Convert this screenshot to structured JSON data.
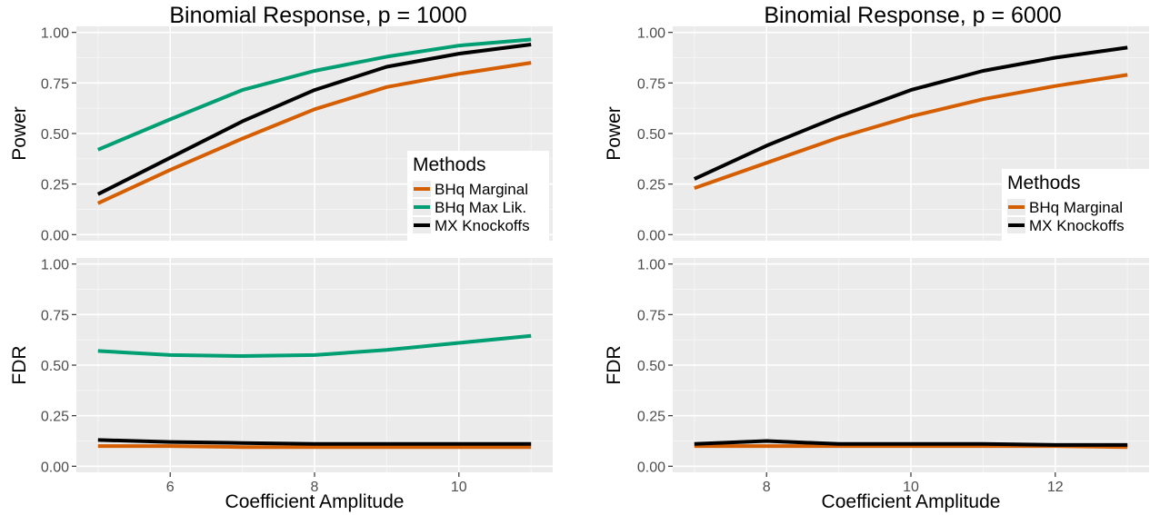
{
  "figure": {
    "colors": {
      "panel_bg": "#ebebeb",
      "grid_major": "#ffffff",
      "grid_minor": "#f5f5f5",
      "tick_text": "#4d4d4d"
    }
  },
  "chart_data": [
    {
      "type": "line",
      "title": "Binomial Response, p = 1000",
      "xlabel": "Coefficient Amplitude",
      "x": [
        5,
        6,
        7,
        8,
        9,
        10,
        11
      ],
      "xlim": [
        4.7,
        11.3
      ],
      "xticks": [
        6,
        8,
        10
      ],
      "legend": {
        "title": "Methods",
        "position": "bottom-right of top panel"
      },
      "panels": [
        {
          "ylabel": "Power",
          "ylim": [
            -0.03,
            1.03
          ],
          "yticks": [
            "0.00",
            "0.25",
            "0.50",
            "0.75",
            "1.00"
          ],
          "series": [
            {
              "name": "BHq Marginal",
              "color": "#d55e00",
              "values": [
                0.155,
                0.32,
                0.475,
                0.62,
                0.73,
                0.795,
                0.85
              ]
            },
            {
              "name": "BHq Max Lik.",
              "color": "#009e73",
              "values": [
                0.42,
                0.57,
                0.715,
                0.81,
                0.88,
                0.935,
                0.965
              ]
            },
            {
              "name": "MX Knockoffs",
              "color": "#000000",
              "values": [
                0.2,
                0.38,
                0.56,
                0.715,
                0.83,
                0.895,
                0.94
              ]
            }
          ]
        },
        {
          "ylabel": "FDR",
          "ylim": [
            -0.03,
            1.03
          ],
          "yticks": [
            "0.00",
            "0.25",
            "0.50",
            "0.75",
            "1.00"
          ],
          "series": [
            {
              "name": "BHq Marginal",
              "color": "#d55e00",
              "values": [
                0.1,
                0.1,
                0.095,
                0.095,
                0.095,
                0.095,
                0.095
              ]
            },
            {
              "name": "BHq Max Lik.",
              "color": "#009e73",
              "values": [
                0.57,
                0.55,
                0.545,
                0.55,
                0.575,
                0.61,
                0.645
              ]
            },
            {
              "name": "MX Knockoffs",
              "color": "#000000",
              "values": [
                0.13,
                0.12,
                0.115,
                0.11,
                0.11,
                0.11,
                0.11
              ]
            }
          ]
        }
      ]
    },
    {
      "type": "line",
      "title": "Binomial Response, p = 6000",
      "xlabel": "Coefficient Amplitude",
      "x": [
        7,
        8,
        9,
        10,
        11,
        12,
        13
      ],
      "xlim": [
        6.7,
        13.3
      ],
      "xticks": [
        8,
        10,
        12
      ],
      "legend": {
        "title": "Methods",
        "position": "bottom-right of top panel"
      },
      "panels": [
        {
          "ylabel": "Power",
          "ylim": [
            -0.03,
            1.03
          ],
          "yticks": [
            "0.00",
            "0.25",
            "0.50",
            "0.75",
            "1.00"
          ],
          "series": [
            {
              "name": "BHq Marginal",
              "color": "#d55e00",
              "values": [
                0.23,
                0.355,
                0.48,
                0.585,
                0.67,
                0.735,
                0.79
              ]
            },
            {
              "name": "MX Knockoffs",
              "color": "#000000",
              "values": [
                0.275,
                0.44,
                0.585,
                0.715,
                0.81,
                0.875,
                0.925
              ]
            }
          ]
        },
        {
          "ylabel": "FDR",
          "ylim": [
            -0.03,
            1.03
          ],
          "yticks": [
            "0.00",
            "0.25",
            "0.50",
            "0.75",
            "1.00"
          ],
          "series": [
            {
              "name": "BHq Marginal",
              "color": "#d55e00",
              "values": [
                0.1,
                0.1,
                0.1,
                0.1,
                0.1,
                0.1,
                0.095
              ]
            },
            {
              "name": "MX Knockoffs",
              "color": "#000000",
              "values": [
                0.11,
                0.125,
                0.11,
                0.11,
                0.11,
                0.105,
                0.105
              ]
            }
          ]
        }
      ]
    }
  ]
}
